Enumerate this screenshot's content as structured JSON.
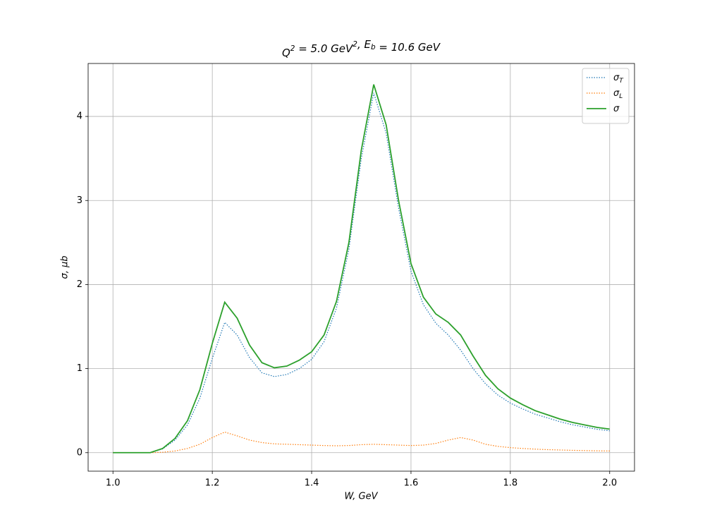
{
  "chart_data": {
    "type": "line",
    "title": "Q2 = 5.0 GeV2,  Eb = 10.6 GeV",
    "x_label": "W, GeV",
    "y_label": "σ, μb",
    "x": [
      1.0,
      1.025,
      1.05,
      1.075,
      1.1,
      1.125,
      1.15,
      1.175,
      1.2,
      1.225,
      1.25,
      1.275,
      1.3,
      1.325,
      1.35,
      1.375,
      1.4,
      1.425,
      1.45,
      1.475,
      1.5,
      1.525,
      1.55,
      1.575,
      1.6,
      1.625,
      1.65,
      1.675,
      1.7,
      1.725,
      1.75,
      1.775,
      1.8,
      1.825,
      1.85,
      1.875,
      1.9,
      1.925,
      1.95,
      1.975,
      2.0
    ],
    "series": [
      {
        "name": "σT",
        "color": "#1f77b4",
        "dash": "dotted",
        "values": [
          0,
          0,
          0,
          0,
          0.045,
          0.15,
          0.33,
          0.65,
          1.12,
          1.55,
          1.4,
          1.13,
          0.95,
          0.905,
          0.93,
          1.0,
          1.11,
          1.32,
          1.72,
          2.42,
          3.5,
          4.28,
          3.8,
          2.91,
          2.16,
          1.76,
          1.54,
          1.4,
          1.22,
          1.0,
          0.82,
          0.685,
          0.59,
          0.52,
          0.458,
          0.414,
          0.368,
          0.332,
          0.305,
          0.278,
          0.26
        ]
      },
      {
        "name": "σL",
        "color": "#ff7f0e",
        "dash": "dotted",
        "values": [
          0,
          0,
          0,
          0,
          0.005,
          0.02,
          0.05,
          0.1,
          0.18,
          0.245,
          0.2,
          0.15,
          0.12,
          0.105,
          0.1,
          0.095,
          0.09,
          0.085,
          0.082,
          0.085,
          0.095,
          0.1,
          0.095,
          0.09,
          0.085,
          0.09,
          0.11,
          0.15,
          0.18,
          0.15,
          0.1,
          0.075,
          0.06,
          0.05,
          0.042,
          0.036,
          0.032,
          0.028,
          0.025,
          0.022,
          0.02
        ]
      },
      {
        "name": "σ",
        "color": "#2ca02c",
        "dash": "solid",
        "values": [
          0,
          0,
          0,
          0,
          0.05,
          0.17,
          0.38,
          0.75,
          1.3,
          1.79,
          1.6,
          1.28,
          1.07,
          1.01,
          1.03,
          1.1,
          1.2,
          1.4,
          1.8,
          2.5,
          3.6,
          4.38,
          3.9,
          3.0,
          2.25,
          1.85,
          1.65,
          1.55,
          1.4,
          1.15,
          0.92,
          0.76,
          0.65,
          0.57,
          0.5,
          0.45,
          0.4,
          0.36,
          0.33,
          0.3,
          0.28
        ]
      }
    ],
    "xlim": [
      0.95,
      2.05
    ],
    "xticks": [
      {
        "value": 1,
        "label": "1.0"
      },
      {
        "value": 1.2,
        "label": "1.2"
      },
      {
        "value": 1.4,
        "label": "1.4"
      },
      {
        "value": 1.6,
        "label": "1.6"
      },
      {
        "value": 1.8,
        "label": "1.8"
      },
      {
        "value": 2,
        "label": "2.0"
      }
    ],
    "ylim": [
      -0.22,
      4.63
    ],
    "yticks": [
      0,
      1,
      2,
      3,
      4
    ],
    "grid": true,
    "legend": "upper right"
  }
}
